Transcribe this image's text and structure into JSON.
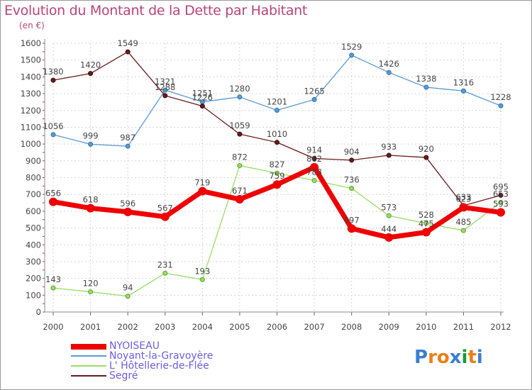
{
  "chart_data": {
    "type": "line",
    "title": "Evolution du Montant de la Dette par Habitant",
    "unit_label": "(en €)",
    "x": [
      "2000",
      "2001",
      "2002",
      "2003",
      "2004",
      "2005",
      "2006",
      "2007",
      "2008",
      "2009",
      "2010",
      "2011",
      "2012"
    ],
    "ylim": [
      0,
      1600
    ],
    "yticks": [
      0,
      100,
      200,
      300,
      400,
      500,
      600,
      700,
      800,
      900,
      1000,
      1100,
      1200,
      1300,
      1400,
      1500,
      1600
    ],
    "grid": true,
    "legend_position": "bottom-left",
    "series": [
      {
        "name": "NYOISEAU",
        "color": "#ee0000",
        "values": [
          656,
          618,
          596,
          567,
          719,
          671,
          759,
          862,
          497,
          444,
          475,
          623,
          593
        ]
      },
      {
        "name": "Noyant-la-Gravoyère",
        "color": "#5b9bd5",
        "values": [
          1056,
          999,
          987,
          1321,
          1251,
          1280,
          1201,
          1265,
          1529,
          1426,
          1338,
          1316,
          1228
        ]
      },
      {
        "name": "L' Hôtellerie-de-Flée",
        "color": "#99dd66",
        "values": [
          143,
          120,
          94,
          231,
          193,
          872,
          827,
          783,
          736,
          573,
          528,
          485,
          653
        ]
      },
      {
        "name": "Segré",
        "color": "#6b1a1a",
        "values": [
          1380,
          1420,
          1549,
          1288,
          1226,
          1059,
          1010,
          914,
          904,
          933,
          920,
          633,
          695
        ]
      }
    ],
    "data_labels": [
      [
        "656",
        "618",
        "596",
        "567",
        "719",
        "671",
        "759",
        "862",
        "497",
        "444",
        "475",
        "623",
        "593"
      ],
      [
        "1056",
        "999",
        "987",
        "1321",
        "1251",
        "1280",
        "1201",
        "1265",
        "1529",
        "1426",
        "1338",
        "1316",
        "1228"
      ],
      [
        "143",
        "120",
        "94",
        "231",
        "193",
        "872",
        "827",
        "783",
        "736",
        "573",
        "528",
        "485",
        "653"
      ],
      [
        "1380",
        "1420",
        "1549",
        "1288",
        "1226",
        "1059",
        "1010",
        "914",
        "904",
        "933",
        "920",
        "633",
        "695"
      ]
    ]
  },
  "legend": {
    "items": [
      "NYOISEAU",
      "Noyant-la-Gravoyère",
      "L' Hôtellerie-de-Flée",
      "Segré"
    ]
  },
  "logo": {
    "text": "Proxiti",
    "letters": [
      "P",
      "r",
      "o",
      "x",
      "i",
      "t",
      "i"
    ],
    "letter_colors": [
      "#3a7fd0",
      "#e8801a",
      "#e8801a",
      "#3a7fd0",
      "#1a9a3a",
      "#e8801a",
      "#3a7fd0"
    ]
  }
}
